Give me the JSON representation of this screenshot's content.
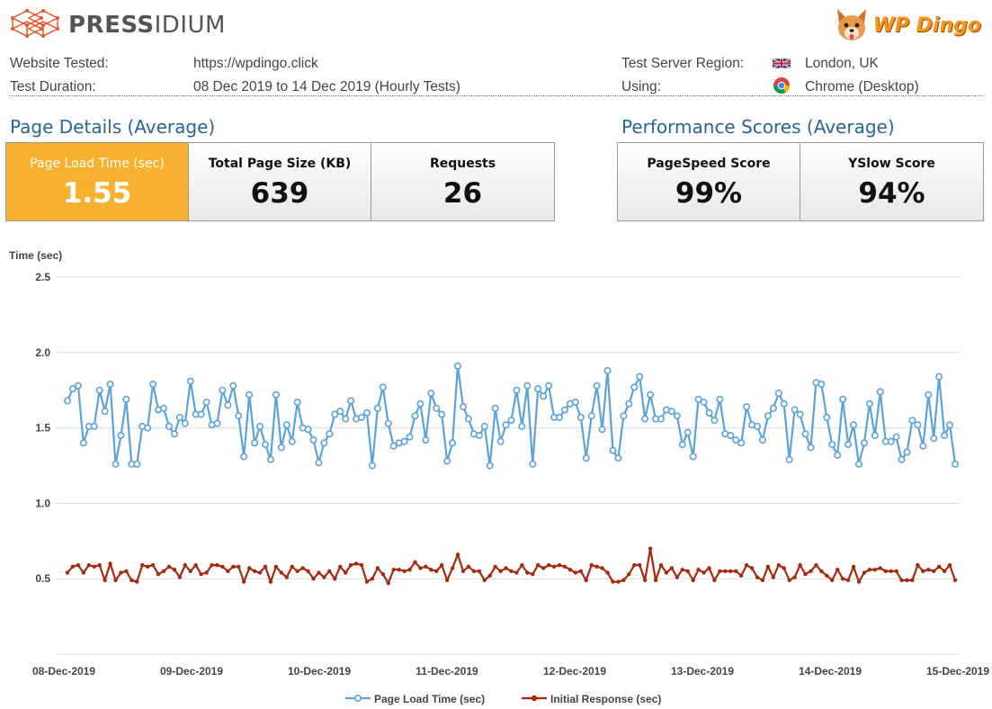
{
  "header": {
    "brand_bold": "PRESS",
    "brand_light": "IDIUM",
    "partner_logo_text": "WP Dingo"
  },
  "info": {
    "website_label": "Website Tested:",
    "website_value": "https://wpdingo.click",
    "duration_label": "Test Duration:",
    "duration_value": "08 Dec 2019 to 14 Dec 2019 (Hourly Tests)",
    "region_label": "Test Server Region:",
    "region_value": "London, UK",
    "using_label": "Using:",
    "using_value": "Chrome (Desktop)"
  },
  "page_details": {
    "title": "Page Details (Average)",
    "cards": [
      {
        "label": "Page Load Time (sec)",
        "value": "1.55"
      },
      {
        "label": "Total Page Size (KB)",
        "value": "639"
      },
      {
        "label": "Requests",
        "value": "26"
      }
    ]
  },
  "performance": {
    "title": "Performance Scores (Average)",
    "cards": [
      {
        "label": "PageSpeed Score",
        "value": "99%"
      },
      {
        "label": "YSlow Score",
        "value": "94%"
      }
    ]
  },
  "colors": {
    "highlight": "#f8b12f",
    "title_blue": "#2a6496",
    "series_load": "#5ba3d9",
    "series_response": "#a52a0f"
  },
  "chart_data": {
    "type": "line",
    "ylabel": "Time (sec)",
    "ylim": [
      0,
      2.5
    ],
    "yticks": [
      "2.5",
      "2.0",
      "1.5",
      "1.0",
      "0.5"
    ],
    "xticks": [
      "08-Dec-2019",
      "09-Dec-2019",
      "10-Dec-2019",
      "11-Dec-2019",
      "12-Dec-2019",
      "13-Dec-2019",
      "14-Dec-2019",
      "15-Dec-2019"
    ],
    "grid": true,
    "legend_position": "bottom",
    "series": [
      {
        "name": "Page Load Time (sec)",
        "values": [
          1.68,
          1.76,
          1.78,
          1.4,
          1.51,
          1.51,
          1.75,
          1.61,
          1.79,
          1.26,
          1.45,
          1.69,
          1.26,
          1.26,
          1.51,
          1.5,
          1.79,
          1.62,
          1.63,
          1.51,
          1.46,
          1.57,
          1.53,
          1.81,
          1.59,
          1.59,
          1.67,
          1.52,
          1.53,
          1.75,
          1.65,
          1.78,
          1.58,
          1.31,
          1.72,
          1.4,
          1.51,
          1.39,
          1.29,
          1.72,
          1.37,
          1.52,
          1.41,
          1.67,
          1.5,
          1.49,
          1.42,
          1.27,
          1.4,
          1.46,
          1.59,
          1.61,
          1.56,
          1.68,
          1.56,
          1.57,
          1.6,
          1.25,
          1.63,
          1.77,
          1.53,
          1.38,
          1.4,
          1.41,
          1.44,
          1.58,
          1.66,
          1.42,
          1.73,
          1.63,
          1.59,
          1.28,
          1.4,
          1.91,
          1.64,
          1.56,
          1.46,
          1.45,
          1.51,
          1.25,
          1.63,
          1.41,
          1.52,
          1.55,
          1.75,
          1.51,
          1.78,
          1.26,
          1.76,
          1.71,
          1.78,
          1.57,
          1.57,
          1.62,
          1.66,
          1.67,
          1.57,
          1.3,
          1.58,
          1.78,
          1.49,
          1.88,
          1.35,
          1.3,
          1.58,
          1.66,
          1.77,
          1.84,
          1.56,
          1.72,
          1.56,
          1.56,
          1.62,
          1.61,
          1.58,
          1.39,
          1.47,
          1.31,
          1.69,
          1.67,
          1.6,
          1.55,
          1.69,
          1.46,
          1.45,
          1.42,
          1.4,
          1.64,
          1.52,
          1.51,
          1.42,
          1.58,
          1.63,
          1.73,
          1.66,
          1.29,
          1.62,
          1.59,
          1.46,
          1.37,
          1.8,
          1.79,
          1.57,
          1.39,
          1.32,
          1.69,
          1.39,
          1.52,
          1.26,
          1.4,
          1.66,
          1.45,
          1.74,
          1.41,
          1.41,
          1.44,
          1.29,
          1.34,
          1.55,
          1.52,
          1.38,
          1.72,
          1.43,
          1.84,
          1.45,
          1.52,
          1.26
        ]
      },
      {
        "name": "Initial Response (sec)",
        "values": [
          0.54,
          0.58,
          0.59,
          0.54,
          0.59,
          0.58,
          0.59,
          0.49,
          0.6,
          0.49,
          0.54,
          0.55,
          0.49,
          0.48,
          0.59,
          0.58,
          0.59,
          0.53,
          0.55,
          0.58,
          0.56,
          0.51,
          0.59,
          0.55,
          0.59,
          0.53,
          0.54,
          0.59,
          0.59,
          0.58,
          0.55,
          0.58,
          0.58,
          0.48,
          0.57,
          0.55,
          0.54,
          0.58,
          0.48,
          0.58,
          0.54,
          0.51,
          0.58,
          0.55,
          0.57,
          0.55,
          0.5,
          0.54,
          0.51,
          0.55,
          0.5,
          0.58,
          0.54,
          0.59,
          0.6,
          0.59,
          0.48,
          0.5,
          0.57,
          0.53,
          0.47,
          0.56,
          0.56,
          0.55,
          0.56,
          0.61,
          0.57,
          0.58,
          0.56,
          0.55,
          0.59,
          0.49,
          0.57,
          0.66,
          0.55,
          0.58,
          0.55,
          0.55,
          0.49,
          0.52,
          0.58,
          0.55,
          0.57,
          0.55,
          0.54,
          0.59,
          0.54,
          0.53,
          0.59,
          0.57,
          0.59,
          0.58,
          0.59,
          0.58,
          0.56,
          0.54,
          0.55,
          0.49,
          0.59,
          0.58,
          0.57,
          0.54,
          0.48,
          0.48,
          0.49,
          0.53,
          0.59,
          0.59,
          0.49,
          0.7,
          0.49,
          0.59,
          0.54,
          0.57,
          0.51,
          0.56,
          0.55,
          0.49,
          0.56,
          0.54,
          0.57,
          0.49,
          0.55,
          0.55,
          0.55,
          0.55,
          0.52,
          0.59,
          0.57,
          0.51,
          0.49,
          0.58,
          0.51,
          0.59,
          0.57,
          0.49,
          0.51,
          0.59,
          0.53,
          0.55,
          0.59,
          0.55,
          0.52,
          0.49,
          0.56,
          0.5,
          0.49,
          0.58,
          0.48,
          0.54,
          0.56,
          0.56,
          0.57,
          0.55,
          0.55,
          0.55,
          0.49,
          0.49,
          0.49,
          0.59,
          0.55,
          0.56,
          0.55,
          0.58,
          0.55,
          0.59,
          0.49
        ]
      }
    ]
  }
}
